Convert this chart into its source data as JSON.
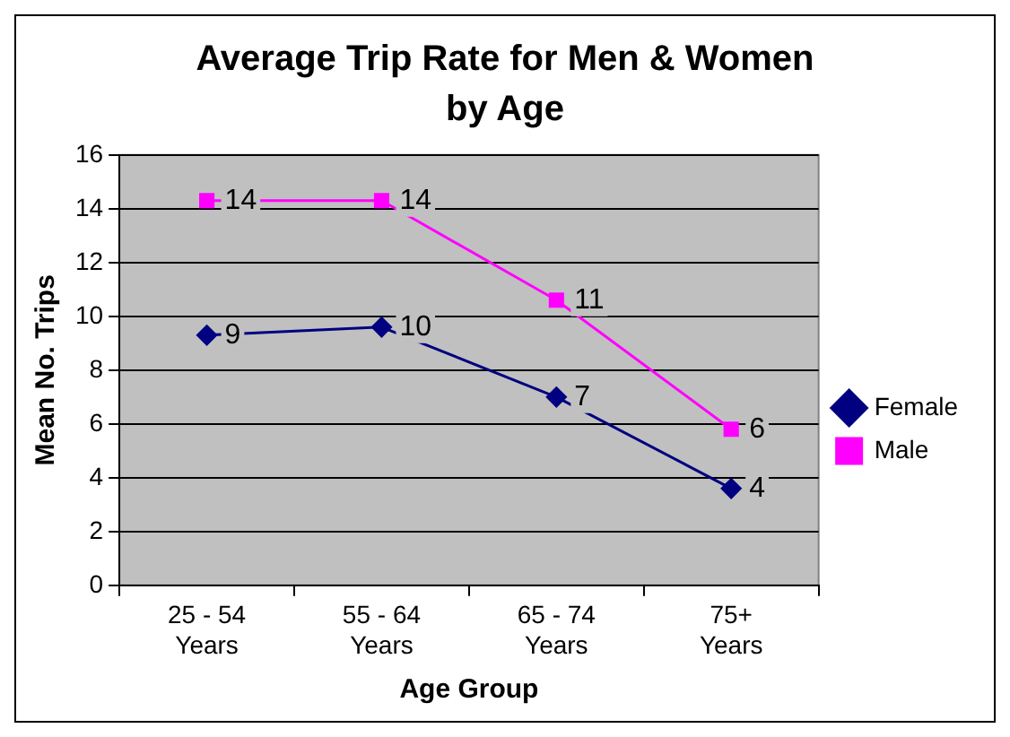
{
  "chart_data": {
    "type": "line",
    "title": "Average Trip Rate for Men & Women by Age",
    "xlabel": "Age Group",
    "ylabel": "Mean No. Trips",
    "categories": [
      "25 - 54 Years",
      "55 - 64 Years",
      "65 - 74 Years",
      "75+ Years"
    ],
    "series": [
      {
        "name": "Female",
        "color": "#000080",
        "marker": "diamond",
        "values": [
          9.3,
          9.6,
          7.0,
          3.6
        ],
        "value_labels": [
          "9",
          "10",
          "7",
          "4"
        ]
      },
      {
        "name": "Male",
        "color": "#ff00ff",
        "marker": "square",
        "values": [
          14.3,
          14.3,
          10.6,
          5.8
        ],
        "value_labels": [
          "14",
          "14",
          "11",
          "6"
        ]
      }
    ],
    "ylim": [
      0,
      16
    ],
    "yticks": [
      0,
      2,
      4,
      6,
      8,
      10,
      12,
      14,
      16
    ],
    "grid": "y",
    "legend": "right"
  }
}
